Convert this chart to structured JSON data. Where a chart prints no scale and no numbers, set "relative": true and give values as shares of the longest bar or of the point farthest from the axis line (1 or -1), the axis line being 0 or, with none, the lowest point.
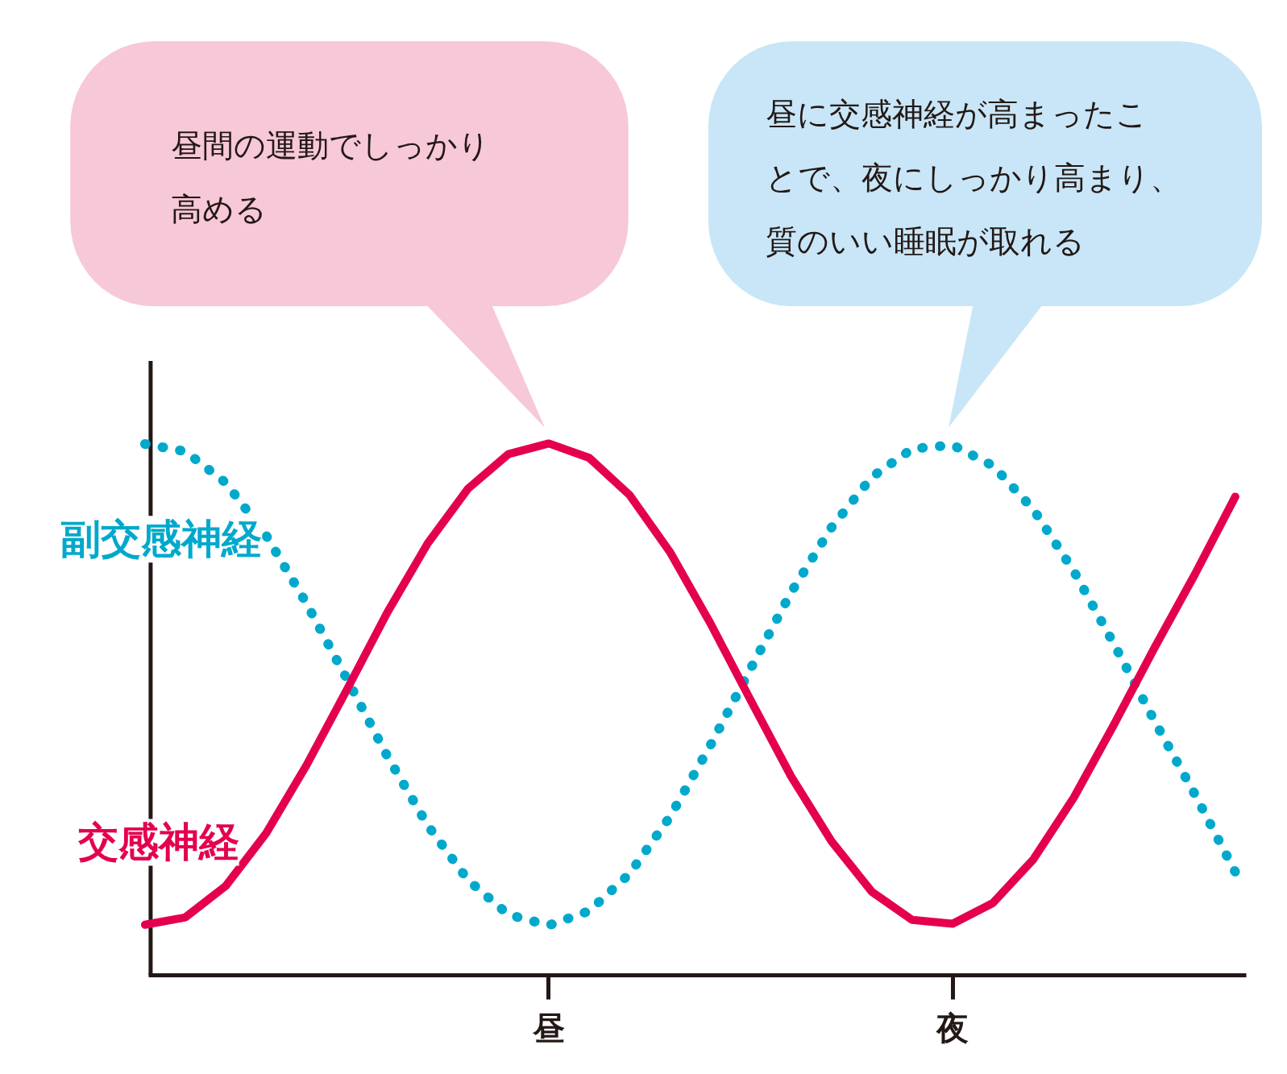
{
  "chart_data": {
    "type": "line",
    "relative": true,
    "categories": [
      null,
      null,
      null,
      null,
      null,
      null,
      null,
      null,
      null,
      null,
      "昼",
      null,
      null,
      null,
      null,
      null,
      null,
      null,
      null,
      null,
      "夜",
      null,
      null,
      null,
      null,
      null,
      null,
      null
    ],
    "series": [
      {
        "name": "副交感神経",
        "color": "#00a9cc",
        "line_style": "dotted",
        "values": [
          0.999,
          0.985,
          0.926,
          0.827,
          0.699,
          0.557,
          0.412,
          0.282,
          0.179,
          0.114,
          0.094,
          0.121,
          0.191,
          0.298,
          0.432,
          0.577,
          0.72,
          0.842,
          0.937,
          0.99,
          0.997,
          0.958,
          0.876,
          0.76,
          0.622,
          0.478,
          0.34,
          0.194
        ]
      },
      {
        "name": "交感神経",
        "color": "#e4004f",
        "line_style": "solid",
        "values": [
          0.095,
          0.109,
          0.168,
          0.267,
          0.395,
          0.537,
          0.682,
          0.812,
          0.915,
          0.98,
          1.0,
          0.973,
          0.903,
          0.796,
          0.662,
          0.517,
          0.374,
          0.252,
          0.157,
          0.104,
          0.097,
          0.136,
          0.218,
          0.334,
          0.472,
          0.616,
          0.754,
          0.9
        ]
      }
    ],
    "annotations": [
      "昼間の運動でしっかり高める",
      "昼に交感神経が高まったことで、夜にしっかり高まり、質のいい睡眠が取れる"
    ]
  }
}
